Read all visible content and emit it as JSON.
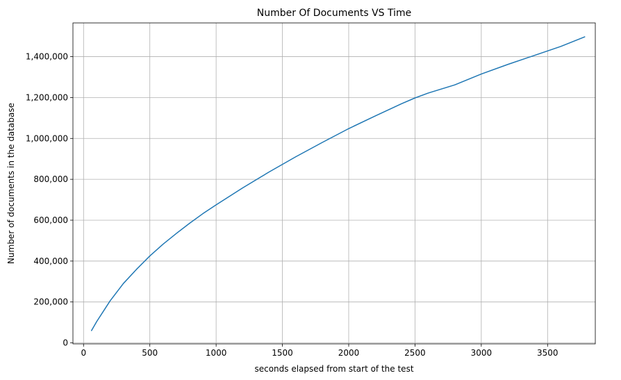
{
  "chart_data": {
    "type": "line",
    "title": "Number Of Documents VS Time",
    "xlabel": "seconds elapsed from start of the test",
    "ylabel": "Number of documents in the database",
    "xlim": [
      -80,
      3860
    ],
    "ylim": [
      -5000,
      1565000
    ],
    "grid": true,
    "x_ticks": [
      0,
      500,
      1000,
      1500,
      2000,
      2500,
      3000,
      3500
    ],
    "x_tick_labels": [
      "0",
      "500",
      "1000",
      "1500",
      "2000",
      "2500",
      "3000",
      "3500"
    ],
    "y_ticks": [
      0,
      200000,
      400000,
      600000,
      800000,
      1000000,
      1200000,
      1400000
    ],
    "y_tick_labels": [
      "0",
      "200,000",
      "400,000",
      "600,000",
      "800,000",
      "1,000,000",
      "1,200,000",
      "1,400,000"
    ],
    "series": [
      {
        "color": "#1f77b4",
        "x": [
          60,
          100,
          150,
          200,
          300,
          400,
          500,
          600,
          700,
          800,
          900,
          1000,
          1200,
          1400,
          1600,
          1800,
          2000,
          2200,
          2400,
          2500,
          2600,
          2700,
          2800,
          3000,
          3200,
          3400,
          3600,
          3780
        ],
        "y": [
          60000,
          105000,
          155000,
          205000,
          290000,
          360000,
          425000,
          483000,
          535000,
          585000,
          632000,
          675000,
          758000,
          836000,
          910000,
          980000,
          1048000,
          1110000,
          1170000,
          1198000,
          1222000,
          1242000,
          1262000,
          1315000,
          1362000,
          1406000,
          1450000,
          1497000
        ]
      }
    ]
  }
}
